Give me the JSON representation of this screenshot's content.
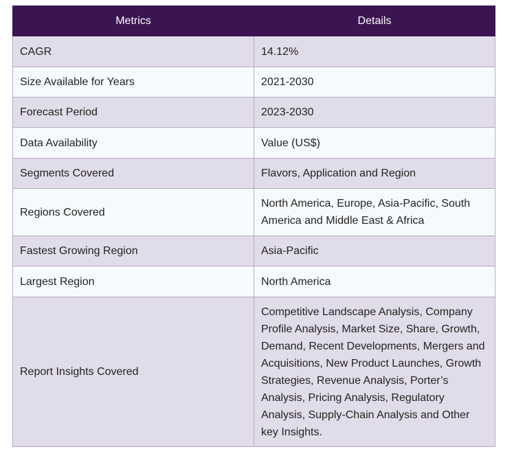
{
  "table": {
    "headers": [
      "Metrics",
      "Details"
    ],
    "rows": [
      {
        "metric": "CAGR",
        "detail": "14.12%"
      },
      {
        "metric": "Size Available for Years",
        "detail": "2021-2030"
      },
      {
        "metric": "Forecast Period",
        "detail": "2023-2030"
      },
      {
        "metric": "Data Availability",
        "detail": "Value (US$)"
      },
      {
        "metric": "Segments Covered",
        "detail": "Flavors, Application and Region"
      },
      {
        "metric": "Regions Covered",
        "detail": "North America, Europe, Asia-Pacific, South America and Middle East & Africa"
      },
      {
        "metric": "Fastest Growing Region",
        "detail": "Asia-Pacific"
      },
      {
        "metric": "Largest Region",
        "detail": "North America"
      },
      {
        "metric": "Report Insights Covered",
        "detail": "Competitive Landscape Analysis, Company Profile Analysis, Market Size, Share, Growth, Demand, Recent Developments, Mergers and Acquisitions, New Product Launches, Growth Strategies, Revenue Analysis, Porter’s Analysis, Pricing Analysis, Regulatory Analysis, Supply-Chain Analysis and Other key Insights."
      }
    ]
  },
  "colors": {
    "header_bg": "#3b1552",
    "row_odd_bg": "#e1dce9",
    "row_even_bg": "#f7fafd",
    "border": "#b3a9c6"
  }
}
